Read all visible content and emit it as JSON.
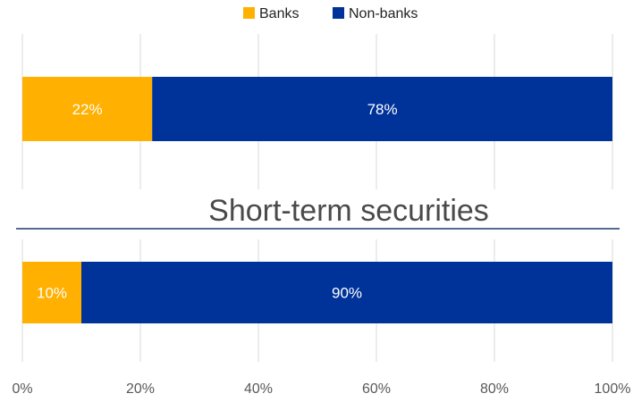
{
  "chart_data": {
    "type": "bar",
    "orientation": "horizontal",
    "stacked": true,
    "xlim": [
      0,
      100
    ],
    "x_ticks": [
      "0%",
      "20%",
      "40%",
      "60%",
      "80%",
      "100%"
    ],
    "grid": true,
    "legend": {
      "placement": "top",
      "entries": [
        "Banks",
        "Non-banks"
      ]
    },
    "series": [
      {
        "name": "Banks",
        "color": "#FFB000",
        "values": [
          22,
          10
        ],
        "labels": [
          "22%",
          "10%"
        ]
      },
      {
        "name": "Non-banks",
        "color": "#003399",
        "values": [
          78,
          90
        ],
        "labels": [
          "78%",
          "90%"
        ]
      }
    ],
    "annotations": [
      "Short-term securities"
    ]
  }
}
